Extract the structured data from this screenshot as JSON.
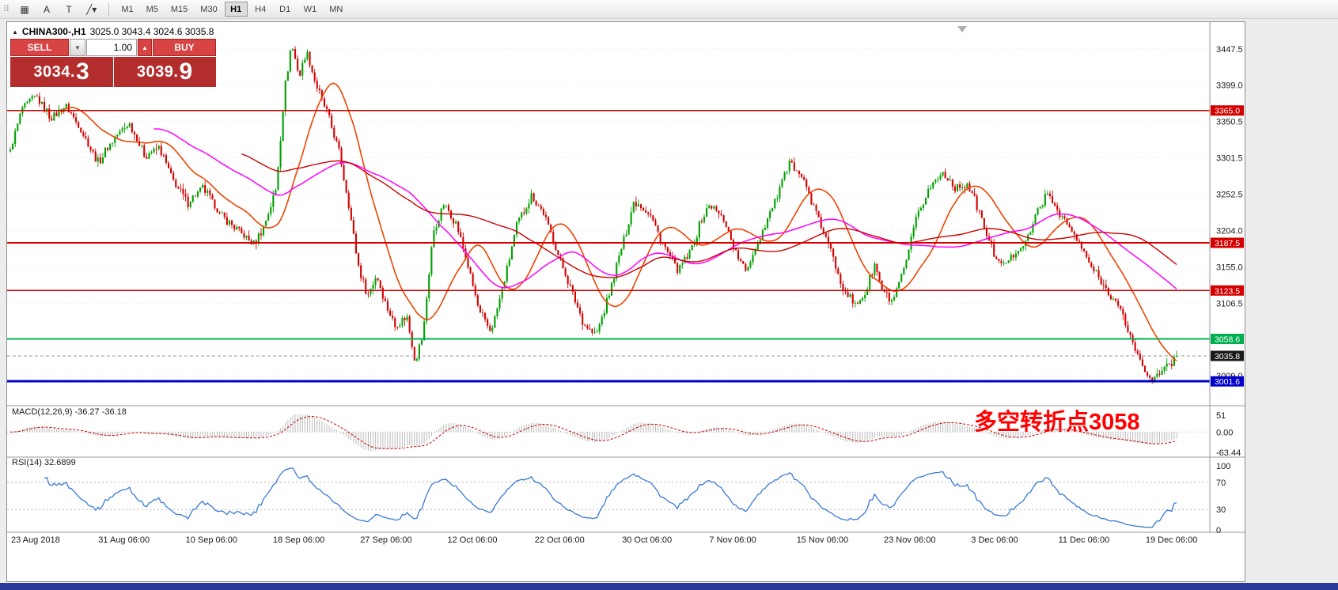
{
  "toolbar": {
    "drag_handle_glyph": "⠿",
    "icons": [
      {
        "name": "chart-objects-grid-icon",
        "glyph": "▦"
      },
      {
        "name": "text-label-a-icon",
        "glyph": "A"
      },
      {
        "name": "text-tool-t-icon",
        "glyph": "T"
      },
      {
        "name": "line-studies-dropdown-icon",
        "glyph": "╱▾"
      }
    ],
    "timeframes": [
      "M1",
      "M5",
      "M15",
      "M30",
      "H1",
      "H4",
      "D1",
      "W1",
      "MN"
    ],
    "active_timeframe": "H1"
  },
  "chart_header": {
    "toggle_icon": "▲",
    "symbol": "CHINA300-,H1",
    "ohlc": "3025.0 3043.4 3024.6 3035.8"
  },
  "trade_panel": {
    "sell_label": "SELL",
    "buy_label": "BUY",
    "volume": "1.00",
    "volume_dropdown_icon": "▼",
    "volume_increase_icon": "▲",
    "sell_price_main": "3034.",
    "sell_price_big": "3",
    "buy_price_main": "3039.",
    "buy_price_big": "9"
  },
  "indicators": {
    "macd_header": "MACD(12,26,9) -36.27 -36.18",
    "rsi_header": "RSI(14) 32.6899"
  },
  "annotation": {
    "text": "多空转折点3058",
    "color": "#FF0000"
  },
  "chart_data": {
    "type": "candlestick",
    "symbol": "CHINA300-",
    "timeframe": "H1",
    "ohlc_display": {
      "open": 3025.0,
      "high": 3043.4,
      "low": 3024.6,
      "close": 3035.8
    },
    "bars": 480,
    "volatility": 6.5,
    "last_close": 3035.8,
    "y_range": [
      2970,
      3475
    ],
    "y_ticks": [
      "3447.5",
      "3399.0",
      "3350.5",
      "3301.5",
      "3252.5",
      "3204.0",
      "3155.0",
      "3106.5",
      "3058.0",
      "3009.0"
    ],
    "x_labels": [
      "23 Aug 2018",
      "31 Aug 06:00",
      "10 Sep 06:00",
      "18 Sep 06:00",
      "27 Sep 06:00",
      "12 Oct 06:00",
      "22 Oct 06:00",
      "30 Oct 06:00",
      "7 Nov 06:00",
      "15 Nov 06:00",
      "23 Nov 06:00",
      "3 Dec 06:00",
      "11 Dec 06:00",
      "19 Dec 06:00"
    ],
    "price_path": [
      [
        0.0,
        3310
      ],
      [
        0.01,
        3368
      ],
      [
        0.022,
        3385
      ],
      [
        0.035,
        3355
      ],
      [
        0.048,
        3372
      ],
      [
        0.06,
        3340
      ],
      [
        0.075,
        3295
      ],
      [
        0.09,
        3330
      ],
      [
        0.102,
        3348
      ],
      [
        0.115,
        3305
      ],
      [
        0.128,
        3315
      ],
      [
        0.14,
        3270
      ],
      [
        0.152,
        3240
      ],
      [
        0.165,
        3262
      ],
      [
        0.18,
        3225
      ],
      [
        0.195,
        3205
      ],
      [
        0.208,
        3185
      ],
      [
        0.218,
        3212
      ],
      [
        0.228,
        3260
      ],
      [
        0.235,
        3390
      ],
      [
        0.241,
        3455
      ],
      [
        0.248,
        3410
      ],
      [
        0.254,
        3445
      ],
      [
        0.262,
        3400
      ],
      [
        0.272,
        3360
      ],
      [
        0.282,
        3310
      ],
      [
        0.29,
        3240
      ],
      [
        0.298,
        3160
      ],
      [
        0.306,
        3115
      ],
      [
        0.314,
        3145
      ],
      [
        0.322,
        3105
      ],
      [
        0.33,
        3075
      ],
      [
        0.34,
        3090
      ],
      [
        0.347,
        3028
      ],
      [
        0.354,
        3065
      ],
      [
        0.362,
        3195
      ],
      [
        0.372,
        3240
      ],
      [
        0.382,
        3215
      ],
      [
        0.392,
        3160
      ],
      [
        0.402,
        3095
      ],
      [
        0.412,
        3068
      ],
      [
        0.422,
        3125
      ],
      [
        0.434,
        3210
      ],
      [
        0.447,
        3252
      ],
      [
        0.458,
        3225
      ],
      [
        0.47,
        3170
      ],
      [
        0.482,
        3120
      ],
      [
        0.492,
        3078
      ],
      [
        0.502,
        3062
      ],
      [
        0.512,
        3110
      ],
      [
        0.524,
        3180
      ],
      [
        0.535,
        3245
      ],
      [
        0.548,
        3228
      ],
      [
        0.56,
        3185
      ],
      [
        0.572,
        3150
      ],
      [
        0.582,
        3172
      ],
      [
        0.592,
        3215
      ],
      [
        0.6,
        3240
      ],
      [
        0.612,
        3218
      ],
      [
        0.622,
        3175
      ],
      [
        0.63,
        3148
      ],
      [
        0.64,
        3185
      ],
      [
        0.652,
        3230
      ],
      [
        0.662,
        3268
      ],
      [
        0.67,
        3298
      ],
      [
        0.68,
        3272
      ],
      [
        0.69,
        3232
      ],
      [
        0.702,
        3182
      ],
      [
        0.714,
        3130
      ],
      [
        0.724,
        3102
      ],
      [
        0.734,
        3122
      ],
      [
        0.741,
        3158
      ],
      [
        0.748,
        3122
      ],
      [
        0.756,
        3108
      ],
      [
        0.766,
        3148
      ],
      [
        0.776,
        3215
      ],
      [
        0.788,
        3262
      ],
      [
        0.8,
        3282
      ],
      [
        0.81,
        3262
      ],
      [
        0.82,
        3268
      ],
      [
        0.83,
        3232
      ],
      [
        0.84,
        3185
      ],
      [
        0.85,
        3155
      ],
      [
        0.86,
        3172
      ],
      [
        0.872,
        3192
      ],
      [
        0.882,
        3235
      ],
      [
        0.89,
        3252
      ],
      [
        0.898,
        3232
      ],
      [
        0.908,
        3208
      ],
      [
        0.918,
        3182
      ],
      [
        0.928,
        3152
      ],
      [
        0.938,
        3128
      ],
      [
        0.948,
        3108
      ],
      [
        0.958,
        3072
      ],
      [
        0.966,
        3038
      ],
      [
        0.974,
        3012
      ],
      [
        0.982,
        3004
      ],
      [
        0.99,
        3018
      ],
      [
        1.0,
        3035.8
      ]
    ],
    "levels": [
      {
        "price": 3365.0,
        "label": "3365.0",
        "color": "#d40000",
        "width": 1.4
      },
      {
        "price": 3187.5,
        "label": "3187.5",
        "color": "#d40000",
        "width": 1.6
      },
      {
        "price": 3123.5,
        "label": "3123.5",
        "color": "#d40000",
        "width": 1.2
      },
      {
        "price": 3058.6,
        "label": "3058.6",
        "color": "#00b050",
        "width": 1.6
      },
      {
        "price": 3001.6,
        "label": "3001.6",
        "color": "#0000c8",
        "width": 3
      }
    ],
    "current_price": {
      "price": 3035.8,
      "label": "3035.8",
      "line_color": "#999999",
      "box_color": "#1a1a1a"
    },
    "moving_averages": [
      {
        "period": 22,
        "color": "#ee4400",
        "width": 1.6,
        "name": "fast-ma"
      },
      {
        "period": 60,
        "color": "#ff00ff",
        "width": 1.5,
        "name": "medium-ma"
      },
      {
        "period": 96,
        "color": "#cc0000",
        "width": 1.4,
        "name": "slow-ma"
      }
    ],
    "candle_up_color": "#00a000",
    "candle_down_color": "#d40000",
    "macd": {
      "fast": 12,
      "slow": 26,
      "signal": 9,
      "values_text": [
        "-36.27",
        "-36.18"
      ],
      "axis_labels": [
        "51",
        "0.00",
        "-63.44"
      ],
      "hist_color": "#bbbbbb",
      "signal_color": "#cc0000"
    },
    "rsi": {
      "period": 14,
      "value": 32.6899,
      "levels": [
        70,
        30
      ],
      "axis_labels": [
        "100",
        "70",
        "30",
        "0"
      ],
      "level_values": [
        100,
        70,
        30,
        0
      ],
      "line_color": "#3879d9"
    }
  }
}
